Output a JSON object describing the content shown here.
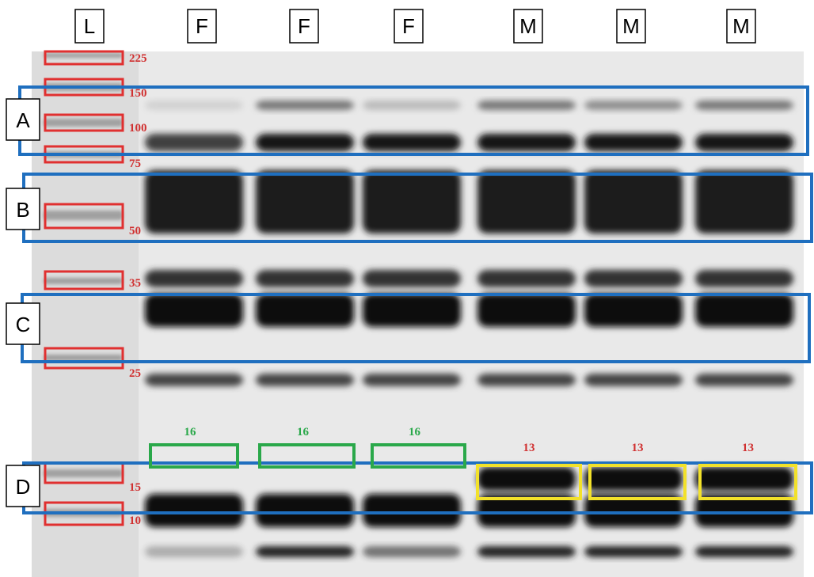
{
  "lane_labels": [
    "L",
    "F",
    "F",
    "F",
    "M",
    "M",
    "M"
  ],
  "region_labels": [
    "A",
    "B",
    "C",
    "D"
  ],
  "ladder_markers": [
    "225",
    "150",
    "100",
    "75",
    "50",
    "35",
    "25",
    "15",
    "10"
  ],
  "band_labels": [
    "16",
    "16",
    "16",
    "13",
    "13",
    "13"
  ]
}
